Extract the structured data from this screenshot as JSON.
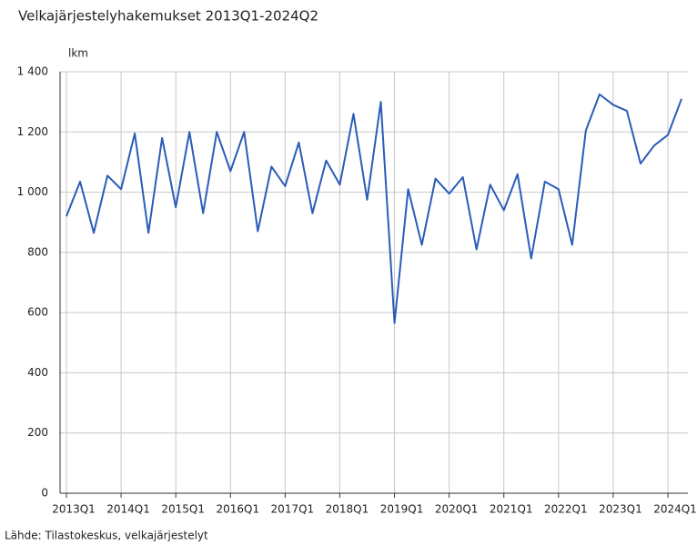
{
  "chart_data": {
    "type": "line",
    "title": "Velkajärjestelyhakemukset 2013Q1-2024Q2",
    "y_label": "lkm",
    "source": "Lähde: Tilastokeskus, velkajärjestelyt",
    "categories": [
      "2013Q1",
      null,
      null,
      null,
      "2014Q1",
      null,
      null,
      null,
      "2015Q1",
      null,
      null,
      null,
      "2016Q1",
      null,
      null,
      null,
      "2017Q1",
      null,
      null,
      null,
      "2018Q1",
      null,
      null,
      null,
      "2019Q1",
      null,
      null,
      null,
      "2020Q1",
      null,
      null,
      null,
      "2021Q1",
      null,
      null,
      null,
      "2022Q1",
      null,
      null,
      null,
      "2023Q1",
      null,
      null,
      null,
      "2024Q1",
      null
    ],
    "values": [
      920,
      1035,
      865,
      1055,
      1010,
      1195,
      865,
      1180,
      950,
      1200,
      930,
      1200,
      1070,
      1200,
      870,
      1085,
      1020,
      1165,
      930,
      1105,
      1025,
      1260,
      975,
      1300,
      565,
      1010,
      825,
      1045,
      995,
      1050,
      810,
      1025,
      940,
      1060,
      780,
      1035,
      1010,
      825,
      1205,
      1325,
      1290,
      1270,
      1095,
      1155,
      1190,
      1310
    ],
    "color": "#2a5cb8",
    "ylim": [
      0,
      1400
    ],
    "yticks": [
      0,
      200,
      400,
      600,
      800,
      {
        "value": 1000,
        "label": "1 000"
      },
      {
        "value": 1200,
        "label": "1 200"
      },
      {
        "value": 1400,
        "label": "1 400"
      }
    ],
    "grid": true
  }
}
